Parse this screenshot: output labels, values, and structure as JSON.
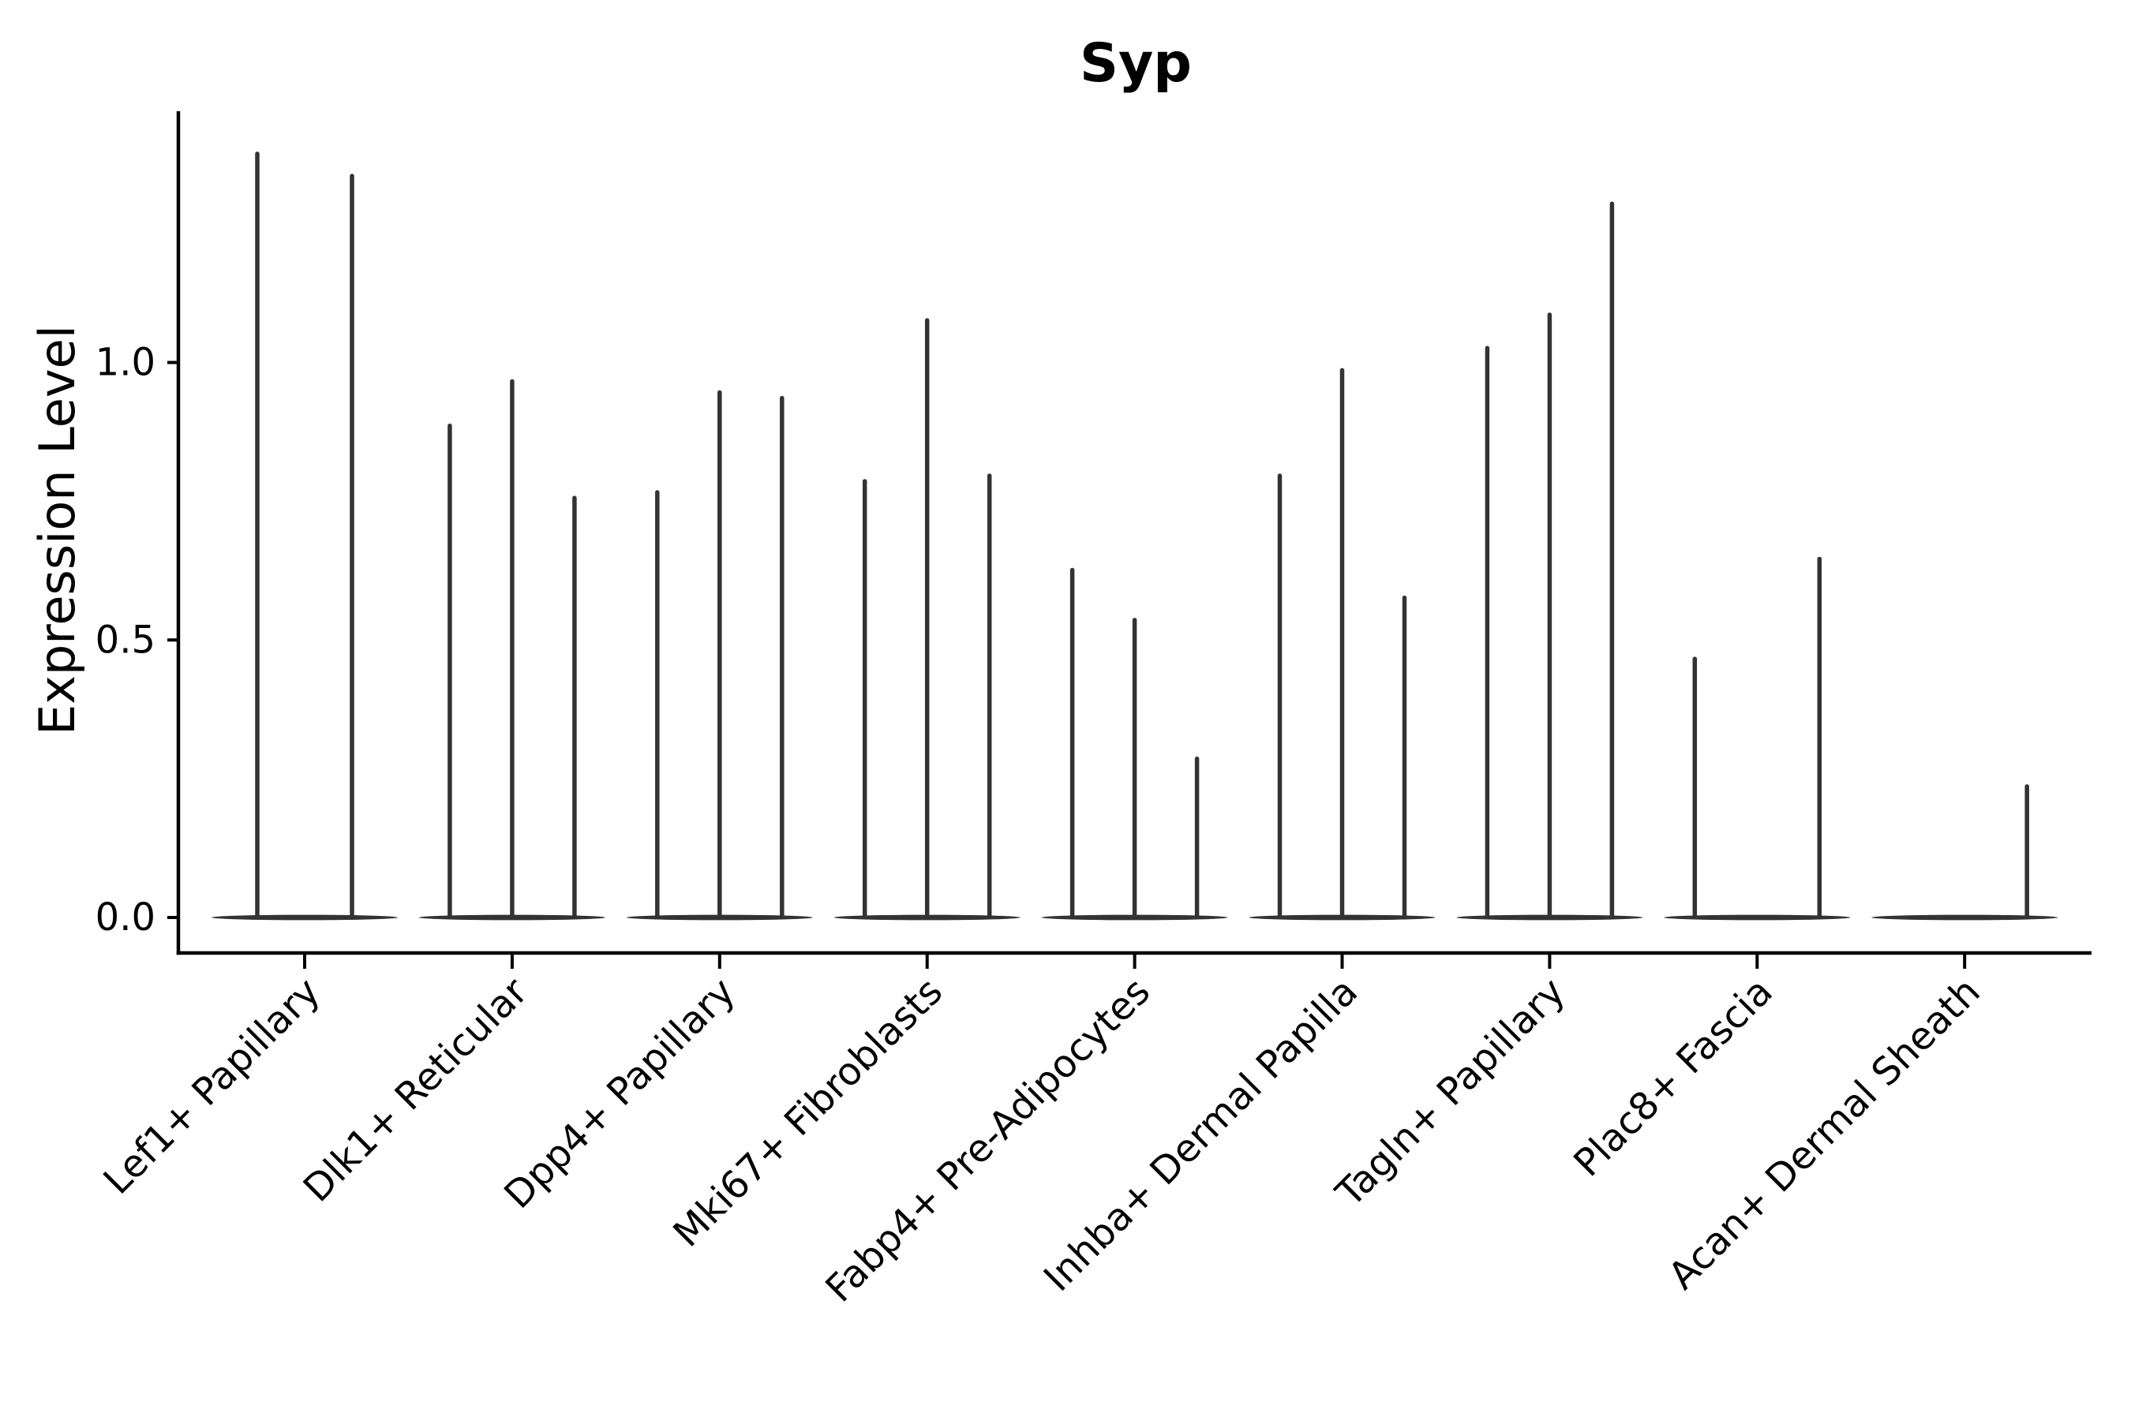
{
  "figure": {
    "background": "#ffffff",
    "violin_color": "#333333",
    "axis_color": "#000000",
    "text_color": "#000000"
  },
  "chart_data": {
    "type": "violin",
    "title": "Syp",
    "xlabel": "",
    "ylabel": "Expression Level",
    "grid": false,
    "legend": null,
    "ylim": [
      -0.06,
      1.45
    ],
    "y_ticks": [
      {
        "label": "0.0",
        "value": 0.0
      },
      {
        "label": "0.5",
        "value": 0.5
      },
      {
        "label": "1.0",
        "value": 1.0
      }
    ],
    "categories": [
      "Lef1+ Papillary",
      "Dlk1+ Reticular",
      "Dpp4+ Papillary",
      "Mki67+ Fibroblasts",
      "Fabp4+ Pre-Adipocytes",
      "Inhba+ Dermal Papilla",
      "Tagln+ Papillary",
      "Plac8+ Fascia",
      "Acan+ Dermal Sheath"
    ],
    "groups": [
      {
        "category": "Lef1+ Papillary",
        "violin_slots": 2,
        "spike_peaks": [
          1.38,
          1.34
        ]
      },
      {
        "category": "Dlk1+ Reticular",
        "violin_slots": 3,
        "spike_peaks": [
          0.89,
          0.97,
          0.76
        ]
      },
      {
        "category": "Dpp4+ Papillary",
        "violin_slots": 3,
        "spike_peaks": [
          0.77,
          0.95,
          0.94
        ]
      },
      {
        "category": "Mki67+ Fibroblasts",
        "violin_slots": 3,
        "spike_peaks": [
          0.79,
          1.08,
          0.8
        ]
      },
      {
        "category": "Fabp4+ Pre-Adipocytes",
        "violin_slots": 3,
        "spike_peaks": [
          0.63,
          0.54,
          0.29
        ]
      },
      {
        "category": "Inhba+ Dermal Papilla",
        "violin_slots": 3,
        "spike_peaks": [
          0.8,
          0.99,
          0.58
        ]
      },
      {
        "category": "Tagln+ Papillary",
        "violin_slots": 3,
        "spike_peaks": [
          1.03,
          1.09,
          1.29
        ]
      },
      {
        "category": "Plac8+ Fascia",
        "violin_slots": 3,
        "spike_peaks": [
          0.47,
          null,
          0.65
        ]
      },
      {
        "category": "Acan+ Dermal Sheath",
        "violin_slots": 3,
        "spike_peaks": [
          null,
          null,
          0.24
        ]
      }
    ]
  }
}
